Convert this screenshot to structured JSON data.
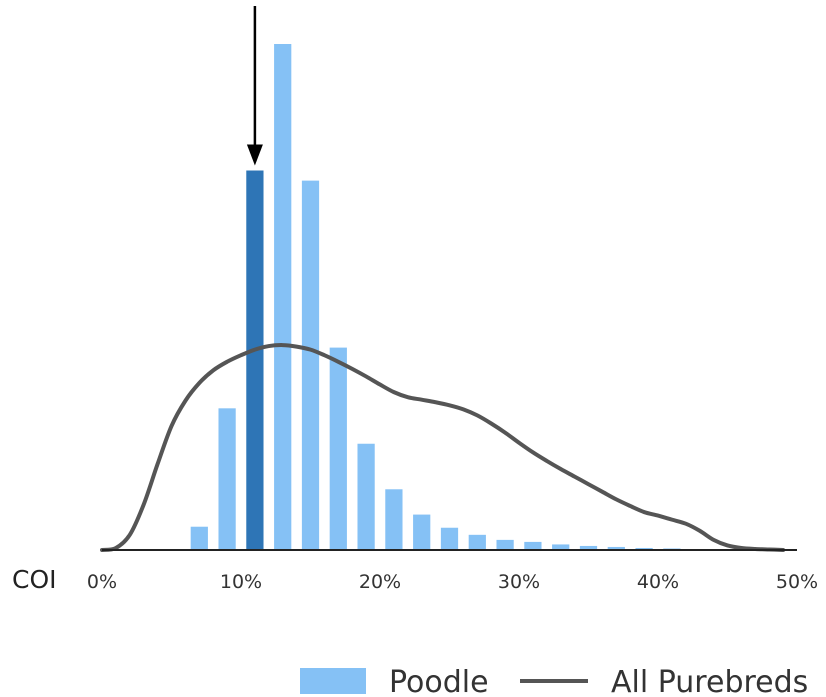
{
  "chart_data": {
    "type": "bar",
    "title": "",
    "xlabel": "COI",
    "ylabel": "",
    "x_unit": "percent",
    "xlim": [
      0,
      50
    ],
    "ylim": [
      0,
      1.0
    ],
    "grid": false,
    "legend_position": "bottom-right",
    "x_ticks": [
      {
        "value": 0,
        "label": "0%"
      },
      {
        "value": 10,
        "label": "10%"
      },
      {
        "value": 20,
        "label": "20%"
      },
      {
        "value": 30,
        "label": "30%"
      },
      {
        "value": 40,
        "label": "40%"
      },
      {
        "value": 50,
        "label": "50%"
      }
    ],
    "colors": {
      "bars": "#85c1f5",
      "highlight_bar": "#2e75b6",
      "curve": "#555555",
      "axis": "#222222",
      "arrow": "#000000"
    },
    "series": [
      {
        "name": "Poodle",
        "type": "bar",
        "bin_width": 2,
        "x": [
          7,
          9,
          11,
          13,
          15,
          17,
          19,
          21,
          23,
          25,
          27,
          29,
          31,
          33,
          35,
          37,
          39,
          41
        ],
        "values": [
          0.046,
          0.28,
          0.75,
          1.0,
          0.73,
          0.4,
          0.21,
          0.12,
          0.07,
          0.044,
          0.03,
          0.02,
          0.016,
          0.011,
          0.008,
          0.006,
          0.004,
          0.003
        ],
        "highlight_x": 11
      },
      {
        "name": "All Purebreds",
        "type": "line",
        "x": [
          0,
          1,
          2,
          3,
          4,
          5,
          6,
          7,
          8,
          9,
          10,
          11,
          12,
          13,
          14,
          15,
          16,
          17,
          18,
          19,
          20,
          21,
          22,
          23,
          24,
          25,
          26,
          27,
          28,
          29,
          30,
          31,
          32,
          33,
          34,
          35,
          36,
          37,
          38,
          39,
          40,
          41,
          42,
          43,
          44,
          45,
          46,
          47,
          48,
          49
        ],
        "values": [
          0.0,
          0.004,
          0.03,
          0.09,
          0.17,
          0.245,
          0.295,
          0.33,
          0.355,
          0.372,
          0.385,
          0.396,
          0.403,
          0.405,
          0.402,
          0.396,
          0.385,
          0.372,
          0.358,
          0.343,
          0.327,
          0.312,
          0.302,
          0.297,
          0.292,
          0.286,
          0.278,
          0.266,
          0.25,
          0.232,
          0.212,
          0.193,
          0.176,
          0.16,
          0.145,
          0.13,
          0.115,
          0.1,
          0.087,
          0.075,
          0.068,
          0.06,
          0.052,
          0.038,
          0.02,
          0.009,
          0.004,
          0.002,
          0.001,
          0.0
        ]
      }
    ],
    "annotations": [
      {
        "type": "arrow",
        "points_to_x": 11,
        "direction": "down"
      }
    ]
  }
}
